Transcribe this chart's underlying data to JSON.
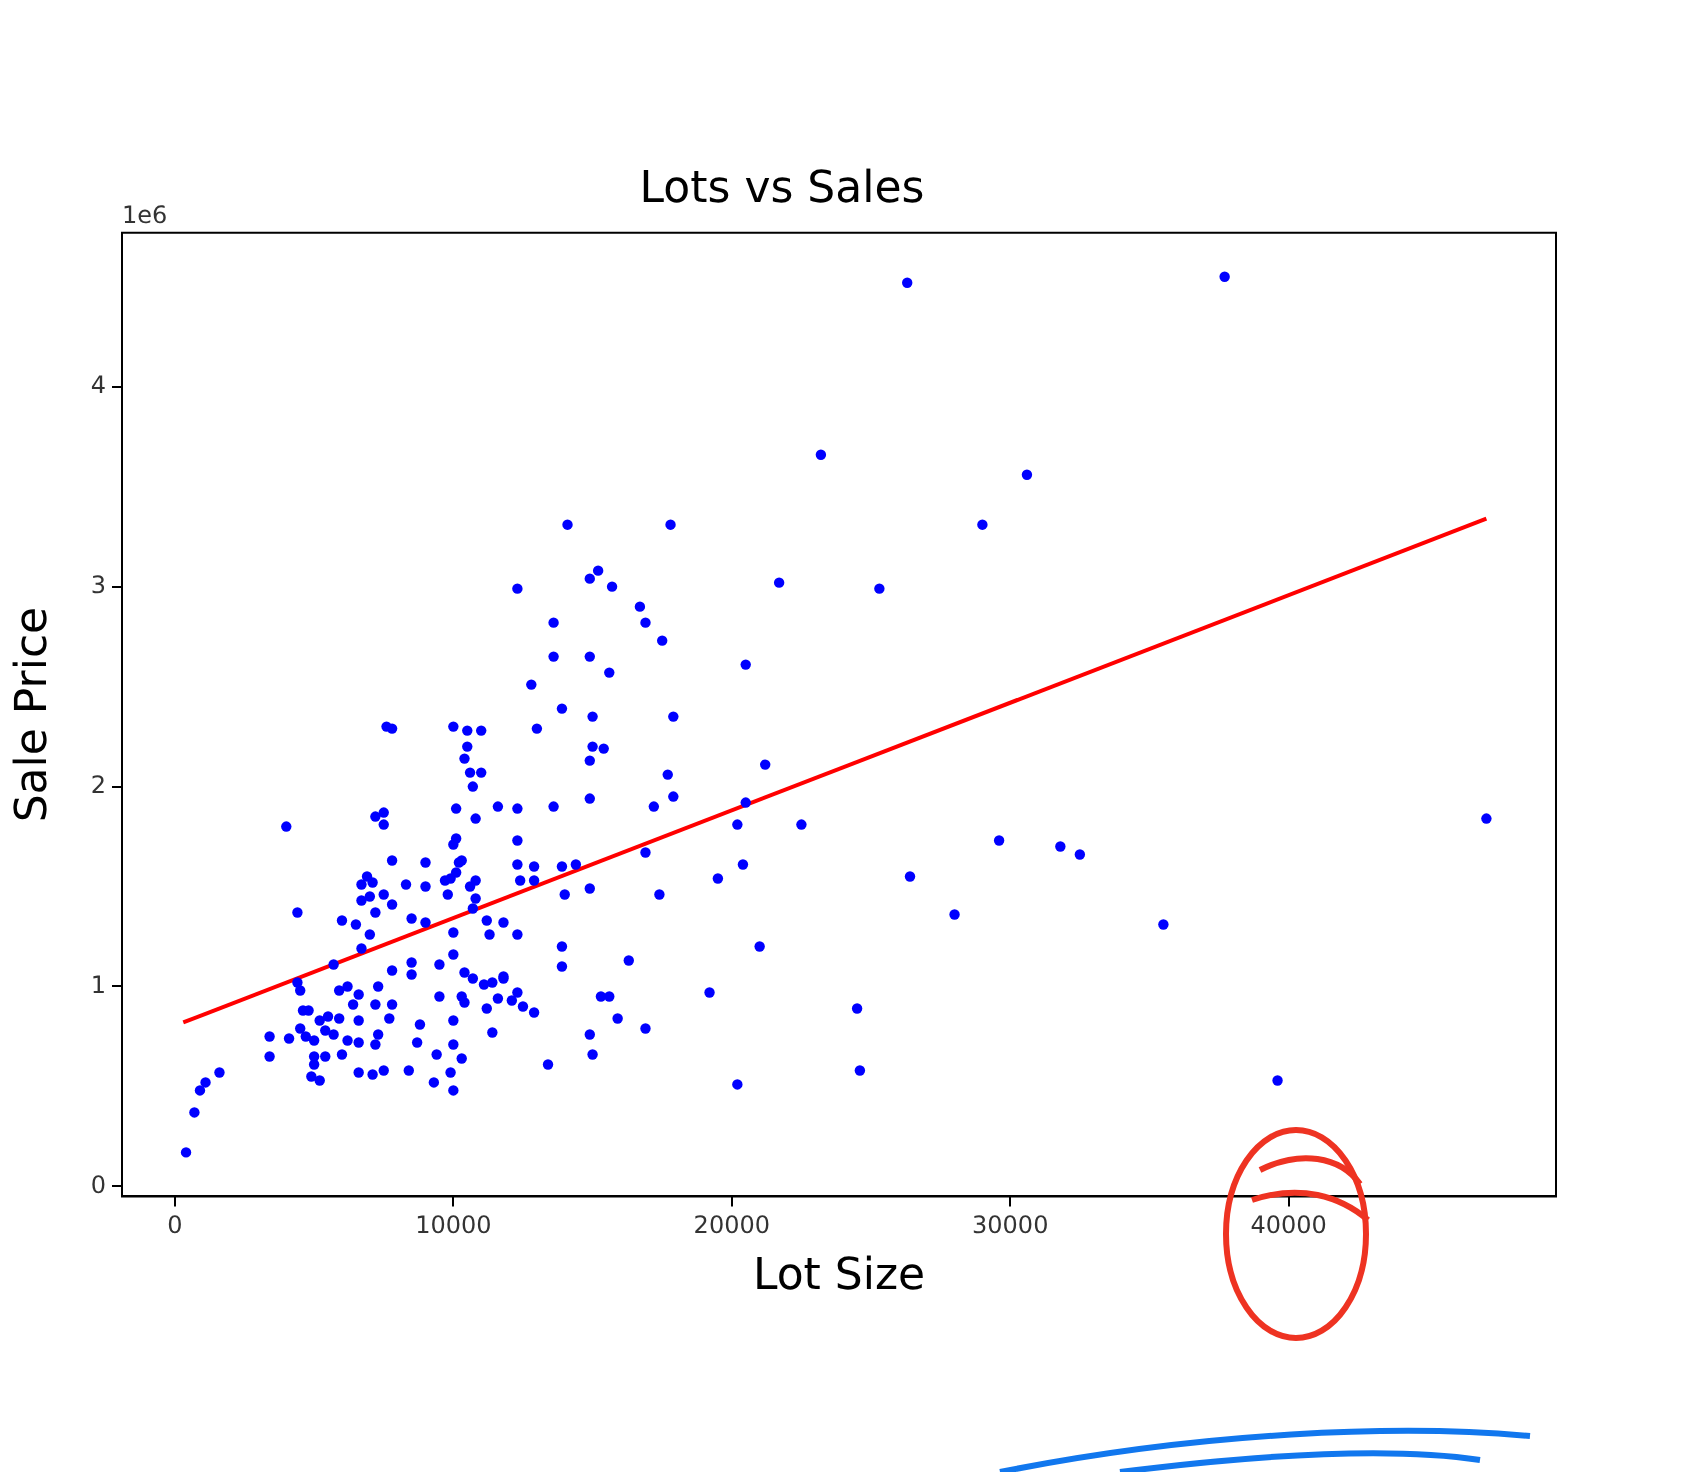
{
  "chart_data": {
    "type": "scatter",
    "title": "Lots vs Sales",
    "xlabel": "Lot Size",
    "ylabel": "Sale Price",
    "annotations": [
      "1e6"
    ],
    "xlim": [
      -1900,
      49600
    ],
    "xticks": [
      0,
      10000,
      20000,
      30000,
      40000
    ],
    "ylim": [
      -0.05,
      4.77
    ],
    "yticks": [
      0,
      1,
      2,
      3,
      4
    ],
    "grid": false,
    "legend": false,
    "marker": "circle",
    "series": [
      {
        "type": "scatter",
        "color": "#0000ff",
        "x": [
          26300,
          37700,
          23200,
          30600,
          29000,
          21700,
          25300,
          20500,
          29600,
          31800,
          32500,
          35500,
          47100,
          39600,
          28000,
          26400,
          24500,
          24600,
          21000,
          19200,
          20200,
          19500,
          20400,
          20200,
          22500,
          20500,
          21200,
          14100,
          17800,
          12300,
          14900,
          15200,
          15700,
          16700,
          16900,
          17500,
          13600,
          13600,
          14900,
          15600,
          12800,
          13900,
          15000,
          17900,
          13000,
          7600,
          7800,
          10000,
          10500,
          11000,
          10500,
          10400,
          10600,
          11000,
          10700,
          15000,
          15400,
          14900,
          17700,
          17900,
          14900,
          13600,
          12300,
          11600,
          10100,
          10800,
          17200,
          7200,
          7500,
          7500,
          12300,
          10100,
          10000,
          16900,
          7800,
          9000,
          10200,
          12300,
          12900,
          13900,
          14400,
          4000,
          4400,
          6900,
          6700,
          7100,
          6700,
          7000,
          7500,
          8300,
          9000,
          9700,
          9900,
          10100,
          10300,
          10800,
          10600,
          9800,
          6000,
          6500,
          7200,
          7800,
          8500,
          9000,
          10000,
          10700,
          11200,
          11800,
          7000,
          6700,
          5700,
          4400,
          4500,
          5900,
          6200,
          6600,
          7300,
          8500,
          8500,
          9500,
          10000,
          10400,
          10700,
          11100,
          11400,
          11800,
          7800,
          9500,
          10300,
          10400,
          11200,
          11600,
          12100,
          11400,
          8800,
          8700,
          10000,
          10000,
          10300,
          9400,
          9900,
          9300,
          10000,
          4600,
          4800,
          4500,
          5200,
          5500,
          5900,
          6600,
          7700,
          7800,
          7200,
          6400,
          7300,
          7200,
          6600,
          6200,
          5700,
          5400,
          5000,
          4700,
          3400,
          4100,
          3400,
          5000,
          5400,
          6000,
          5000,
          4900,
          5200,
          6600,
          7100,
          7500,
          8400,
          1600,
          1100,
          900,
          700,
          400,
          14900,
          17400,
          14000,
          13900,
          13900,
          16300,
          15300,
          15600,
          15900,
          16900,
          14900,
          15000,
          13400,
          12900,
          12500,
          12300,
          11800,
          12300,
          11300,
          10800,
          12400,
          12900
        ],
        "values": [
          4.52,
          4.55,
          3.66,
          3.56,
          3.31,
          3.02,
          2.99,
          2.61,
          1.73,
          1.7,
          1.66,
          1.31,
          1.84,
          0.53,
          1.36,
          1.55,
          0.89,
          0.58,
          1.2,
          0.97,
          0.51,
          1.54,
          1.61,
          1.81,
          1.81,
          1.92,
          2.11,
          3.31,
          3.31,
          2.99,
          3.04,
          3.08,
          3.0,
          2.9,
          2.82,
          2.73,
          2.82,
          2.65,
          2.65,
          2.57,
          2.51,
          2.39,
          2.35,
          2.35,
          2.29,
          2.3,
          2.29,
          2.3,
          2.28,
          2.28,
          2.2,
          2.14,
          2.07,
          2.07,
          2.0,
          2.2,
          2.19,
          2.13,
          2.06,
          1.95,
          1.94,
          1.9,
          1.89,
          1.9,
          1.89,
          1.84,
          1.9,
          1.85,
          1.87,
          1.81,
          1.73,
          1.74,
          1.71,
          1.67,
          1.63,
          1.62,
          1.62,
          1.61,
          1.6,
          1.6,
          1.61,
          1.8,
          1.37,
          1.55,
          1.51,
          1.52,
          1.43,
          1.45,
          1.46,
          1.51,
          1.5,
          1.53,
          1.54,
          1.57,
          1.63,
          1.53,
          1.5,
          1.46,
          1.33,
          1.31,
          1.37,
          1.41,
          1.34,
          1.32,
          1.27,
          1.39,
          1.33,
          1.32,
          1.26,
          1.19,
          1.11,
          1.02,
          0.98,
          0.98,
          1.0,
          0.96,
          1.0,
          1.12,
          1.06,
          1.11,
          1.16,
          1.07,
          1.04,
          1.01,
          1.02,
          1.04,
          1.08,
          0.95,
          0.95,
          0.92,
          0.89,
          0.94,
          0.93,
          0.77,
          0.81,
          0.72,
          0.83,
          0.71,
          0.64,
          0.66,
          0.57,
          0.52,
          0.48,
          0.88,
          0.88,
          0.79,
          0.83,
          0.85,
          0.84,
          0.83,
          0.84,
          0.91,
          0.91,
          0.91,
          0.76,
          0.71,
          0.72,
          0.73,
          0.76,
          0.78,
          0.73,
          0.75,
          0.75,
          0.74,
          0.65,
          0.65,
          0.65,
          0.66,
          0.61,
          0.55,
          0.53,
          0.57,
          0.56,
          0.58,
          0.58,
          0.57,
          0.52,
          0.48,
          0.37,
          0.17,
          1.49,
          1.46,
          1.46,
          1.2,
          1.1,
          1.13,
          0.95,
          0.95,
          0.84,
          0.79,
          0.76,
          0.66,
          0.61,
          0.87,
          0.9,
          0.97,
          1.05,
          1.26,
          1.26,
          1.44,
          1.53,
          1.53
        ]
      },
      {
        "type": "line",
        "color": "#ff0000",
        "x": [
          300,
          47100
        ],
        "values": [
          0.82,
          3.34
        ],
        "marker": "none",
        "line_style": "solid"
      }
    ]
  }
}
